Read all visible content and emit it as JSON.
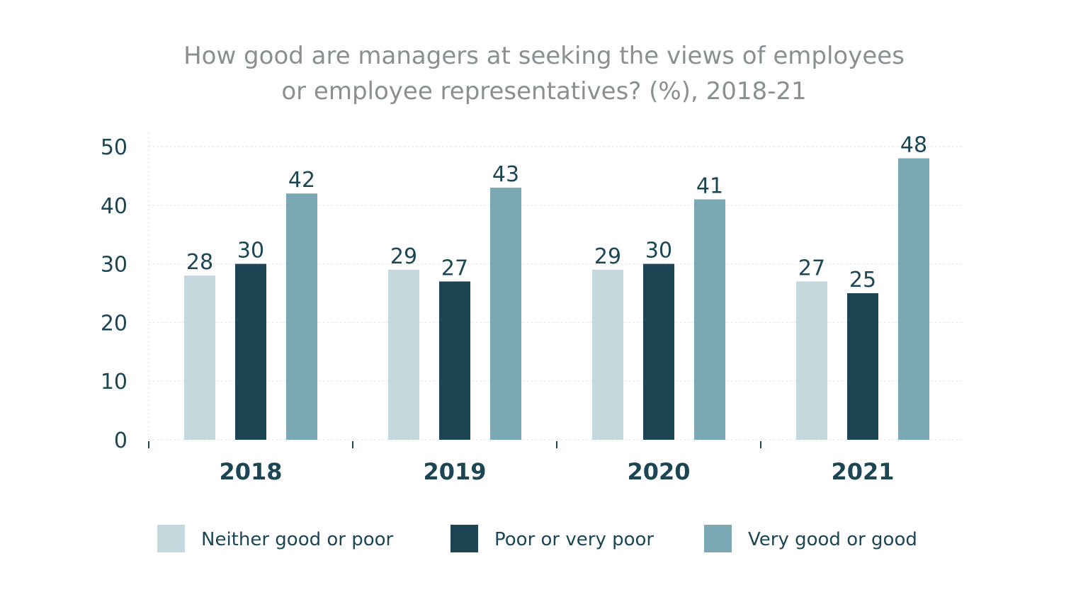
{
  "chart_data": {
    "type": "bar",
    "title_lines": [
      "How good are managers at seeking the views of employees",
      "or employee representatives? (%), 2018-21"
    ],
    "xlabel": "",
    "ylabel": "",
    "categories": [
      "2018",
      "2019",
      "2020",
      "2021"
    ],
    "ylim": [
      0,
      50
    ],
    "yticks": [
      "0",
      "10",
      "20",
      "30",
      "40",
      "50"
    ],
    "grid": true,
    "legend_position": "bottom",
    "series": [
      {
        "name": "Neither good or poor",
        "color": "#c4d9de",
        "values": [
          28,
          29,
          29,
          27
        ]
      },
      {
        "name": "Poor or very poor",
        "color": "#1d4654",
        "values": [
          30,
          27,
          30,
          25
        ]
      },
      {
        "name": "Very good or good",
        "color": "#7aa8b5",
        "values": [
          42,
          43,
          41,
          48
        ]
      }
    ]
  }
}
